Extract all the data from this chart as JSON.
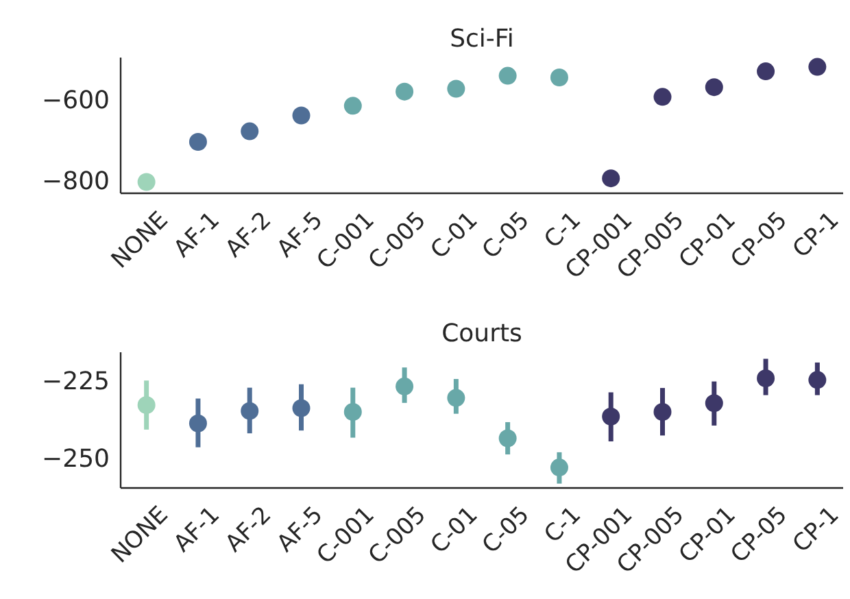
{
  "chart_data": [
    {
      "type": "scatter",
      "title": "Sci-Fi",
      "categories": [
        "NONE",
        "AF-1",
        "AF-2",
        "AF-5",
        "C-001",
        "C-005",
        "C-01",
        "C-05",
        "C-1",
        "CP-001",
        "CP-005",
        "CP-01",
        "CP-05",
        "CP-1"
      ],
      "values": [
        -803,
        -704,
        -678,
        -639,
        -615,
        -580,
        -573,
        -541,
        -545,
        -794,
        -593,
        -569,
        -530,
        -519
      ],
      "colors": [
        "#9ed4b9",
        "#4f6e96",
        "#4f6e96",
        "#4f6e96",
        "#68a8a8",
        "#68a8a8",
        "#68a8a8",
        "#68a8a8",
        "#68a8a8",
        "#3d3868",
        "#3d3868",
        "#3d3868",
        "#3d3868",
        "#3d3868"
      ],
      "ylim": [
        -831,
        -496
      ],
      "yticks": [
        -800,
        -600
      ],
      "grid": false,
      "marker": "circle"
    },
    {
      "type": "scatter",
      "title": "Courts",
      "categories": [
        "NONE",
        "AF-1",
        "AF-2",
        "AF-5",
        "C-001",
        "C-005",
        "C-01",
        "C-05",
        "C-1",
        "CP-001",
        "CP-005",
        "CP-01",
        "CP-05",
        "CP-1"
      ],
      "values": [
        -232.9,
        -238.8,
        -234.8,
        -233.9,
        -235.1,
        -226.9,
        -230.6,
        -243.6,
        -253.0,
        -236.6,
        -235.1,
        -232.3,
        -224.3,
        -224.8
      ],
      "errors": [
        [
          -240.8,
          -225.0
        ],
        [
          -246.5,
          -230.8
        ],
        [
          -242.0,
          -227.3
        ],
        [
          -241.1,
          -226.2
        ],
        [
          -243.4,
          -227.3
        ],
        [
          -232.2,
          -220.8
        ],
        [
          -235.7,
          -224.5
        ],
        [
          -248.8,
          -238.4
        ],
        [
          -258.2,
          -248.1
        ],
        [
          -244.6,
          -228.8
        ],
        [
          -242.7,
          -227.4
        ],
        [
          -239.5,
          -225.3
        ],
        [
          -229.7,
          -218.0
        ],
        [
          -229.7,
          -219.2
        ]
      ],
      "colors": [
        "#9ed4b9",
        "#4f6e96",
        "#4f6e96",
        "#4f6e96",
        "#68a8a8",
        "#68a8a8",
        "#68a8a8",
        "#68a8a8",
        "#68a8a8",
        "#3d3868",
        "#3d3868",
        "#3d3868",
        "#3d3868",
        "#3d3868"
      ],
      "ylim": [
        -259.6,
        -215.9
      ],
      "yticks": [
        -250,
        -225
      ],
      "grid": false,
      "marker": "circle"
    }
  ]
}
